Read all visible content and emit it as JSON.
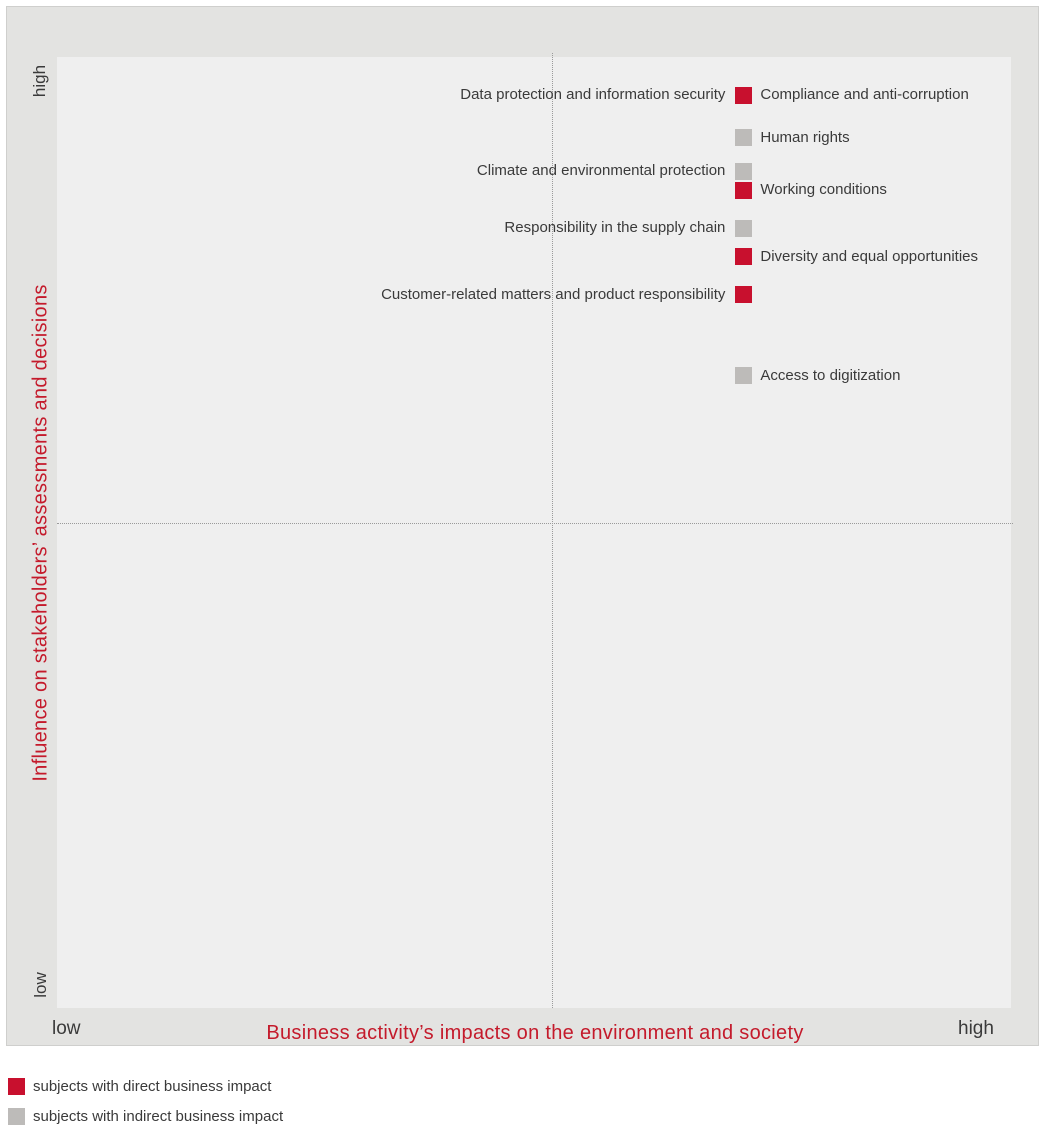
{
  "chart_data": {
    "type": "scatter",
    "title": "",
    "xlabel": "Business activity’s impacts on the environment and society",
    "ylabel": "Influence on stakeholders’ assessments and decisions",
    "x_ticks": {
      "low": "low",
      "high": "high"
    },
    "y_ticks": {
      "low": "low",
      "high": "high"
    },
    "xlim": [
      0,
      1
    ],
    "ylim": [
      0,
      1
    ],
    "grid": "dotted quadrant dividers at midpoint",
    "colors": {
      "direct": "#c8102e",
      "indirect": "#bdbbb9"
    },
    "points": [
      {
        "label": "Data protection and information security",
        "x": 0.72,
        "y": 0.96,
        "category": "direct",
        "label_side": "left"
      },
      {
        "label": "Compliance and anti-corruption",
        "x": 0.72,
        "y": 0.96,
        "category": "direct",
        "label_side": "right"
      },
      {
        "label": "Human rights",
        "x": 0.72,
        "y": 0.915,
        "category": "indirect",
        "label_side": "right"
      },
      {
        "label": "Climate and environmental protection",
        "x": 0.72,
        "y": 0.88,
        "category": "indirect",
        "label_side": "left"
      },
      {
        "label": "Working conditions",
        "x": 0.72,
        "y": 0.86,
        "category": "direct",
        "label_side": "right"
      },
      {
        "label": "Responsibility in the supply chain",
        "x": 0.72,
        "y": 0.82,
        "category": "indirect",
        "label_side": "left"
      },
      {
        "label": "Diversity and equal opportunities",
        "x": 0.72,
        "y": 0.79,
        "category": "direct",
        "label_side": "right"
      },
      {
        "label": "Customer-related matters and product responsibility",
        "x": 0.72,
        "y": 0.75,
        "category": "direct",
        "label_side": "left"
      },
      {
        "label": "Access to digitization",
        "x": 0.72,
        "y": 0.665,
        "category": "indirect",
        "label_side": "right"
      }
    ]
  },
  "legend": [
    {
      "key": "direct",
      "text": "subjects with direct business impact",
      "color": "#c8102e"
    },
    {
      "key": "indirect",
      "text": "subjects with indirect business impact",
      "color": "#bdbbb9"
    }
  ]
}
